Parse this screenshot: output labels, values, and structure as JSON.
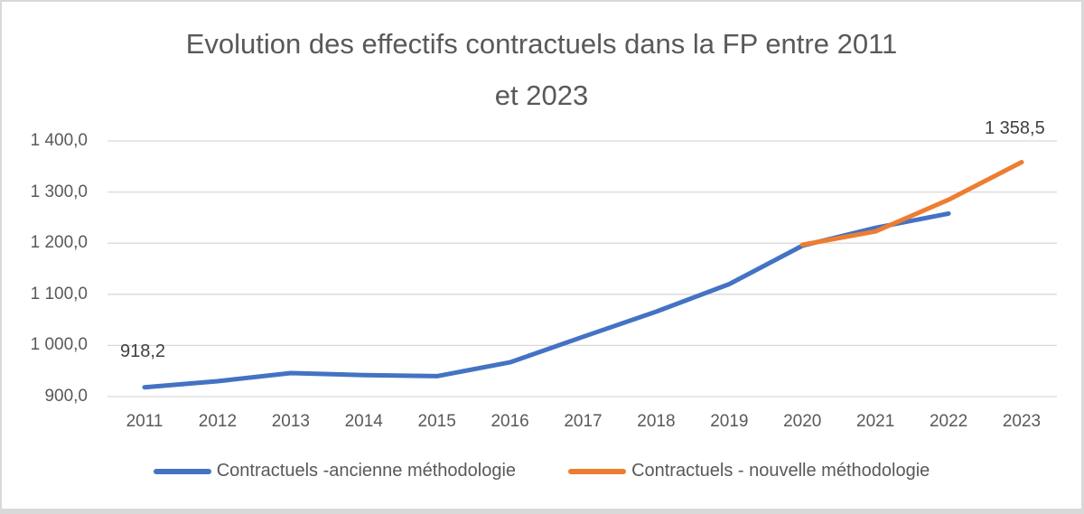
{
  "chart_data": {
    "type": "line",
    "title": "Evolution des effectifs contractuels dans la FP entre 2011 et 2023",
    "title_lines": [
      "Evolution des effectifs contractuels dans la FP entre 2011",
      "et 2023"
    ],
    "x": [
      2011,
      2012,
      2013,
      2014,
      2015,
      2016,
      2017,
      2018,
      2019,
      2020,
      2021,
      2022,
      2023
    ],
    "series": [
      {
        "name": "Contractuels -ancienne méthodologie",
        "color": "#4472C4",
        "x": [
          2011,
          2012,
          2013,
          2014,
          2015,
          2016,
          2017,
          2018,
          2019,
          2020,
          2021,
          2022
        ],
        "values": [
          918.2,
          930,
          946,
          942,
          940,
          967,
          1017,
          1066,
          1120,
          1195,
          1230,
          1258
        ]
      },
      {
        "name": "Contractuels - nouvelle méthodologie",
        "color": "#ED7D31",
        "x": [
          2020,
          2021,
          2022,
          2023
        ],
        "values": [
          1197,
          1223,
          1285,
          1358.5
        ]
      }
    ],
    "ylim": [
      900,
      1400
    ],
    "yticks": [
      900,
      1000,
      1100,
      1200,
      1300,
      1400
    ],
    "ytick_labels": [
      "900,0",
      "1 000,0",
      "1 100,0",
      "1 200,0",
      "1 300,0",
      "1 400,0"
    ],
    "grid": "horizontal",
    "grid_color": "#D9D9D9",
    "axis_text_color": "#595959",
    "legend_position": "bottom",
    "annotations": [
      {
        "text": "918,2",
        "year": 2011,
        "value": 918.2,
        "series": "Contractuels -ancienne méthodologie"
      },
      {
        "text": "1 358,5",
        "year": 2023,
        "value": 1358.5,
        "series": "Contractuels - nouvelle méthodologie"
      }
    ]
  }
}
